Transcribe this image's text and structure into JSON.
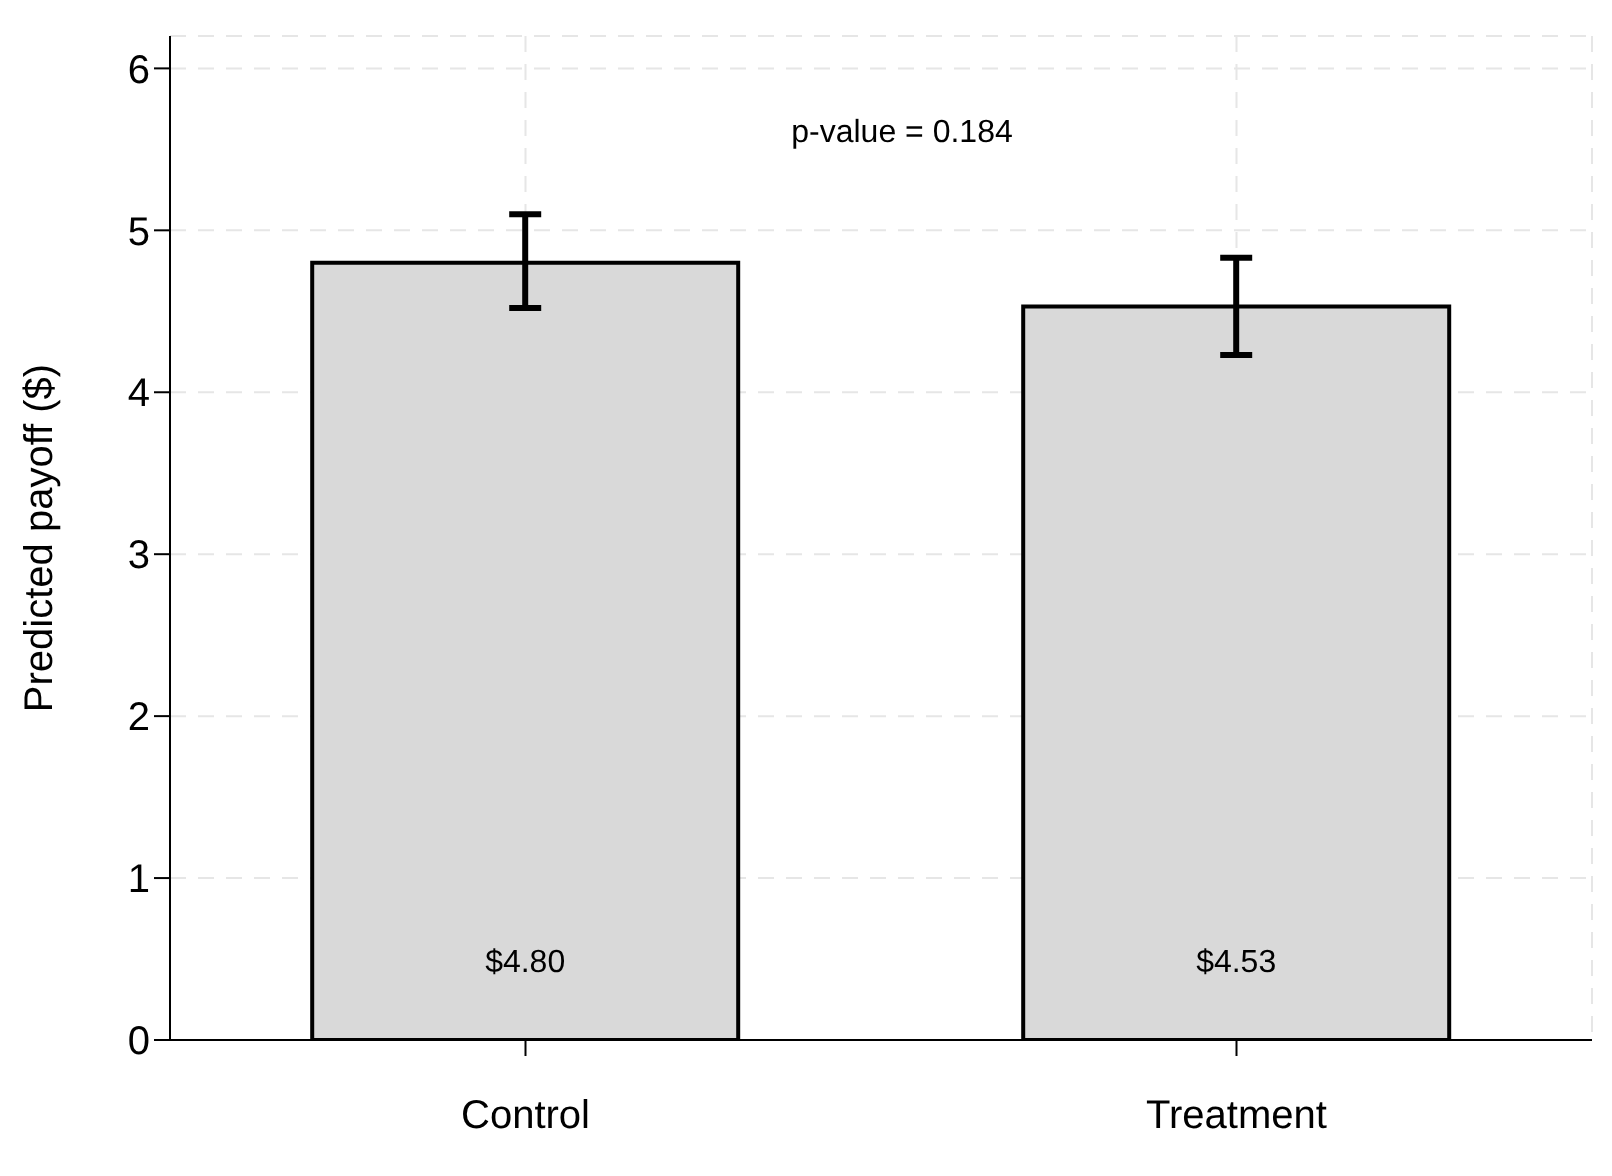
{
  "chart_data": {
    "type": "bar",
    "ylabel": "Predicted payoff ($)",
    "categories": [
      "Control",
      "Treatment"
    ],
    "values": [
      4.8,
      4.53
    ],
    "color": "#d9d9d9",
    "errors": [
      [
        4.52,
        5.1
      ],
      [
        4.23,
        4.83
      ]
    ],
    "value_labels": [
      "$4.80",
      "$4.53"
    ],
    "ylim": [
      0,
      6.2
    ],
    "yticks": [
      0,
      1,
      2,
      3,
      4,
      5,
      6
    ],
    "grid": true,
    "annotations": [
      "p-value = 0.184"
    ]
  }
}
